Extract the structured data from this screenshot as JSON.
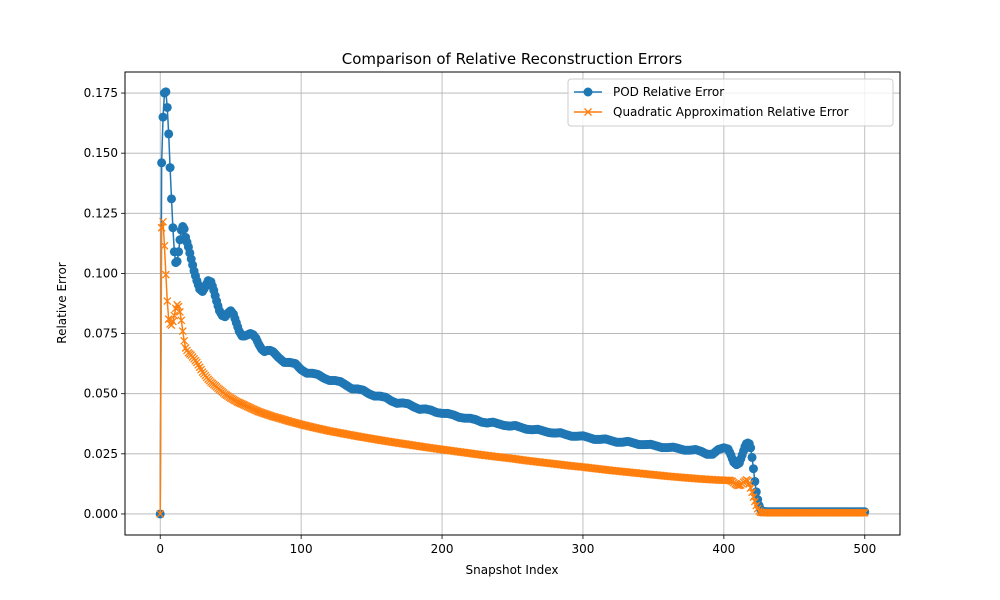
{
  "chart_data": {
    "type": "line",
    "title": "Comparison of Relative Reconstruction Errors",
    "xlabel": "Snapshot Index",
    "ylabel": "Relative Error",
    "xlim": [
      -25,
      525
    ],
    "ylim": [
      -0.00875,
      0.18375
    ],
    "xticks": [
      0,
      100,
      200,
      300,
      400,
      500
    ],
    "yticks": [
      0.0,
      0.025,
      0.05,
      0.075,
      0.1,
      0.125,
      0.15,
      0.175
    ],
    "xtick_labels": [
      "0",
      "100",
      "200",
      "300",
      "400",
      "500"
    ],
    "ytick_labels": [
      "0.000",
      "0.025",
      "0.050",
      "0.075",
      "0.100",
      "0.125",
      "0.150",
      "0.175"
    ],
    "grid": true,
    "legend_position": "top-right",
    "series": [
      {
        "name": "POD Relative Error",
        "color": "#1f77b4",
        "marker": "circle",
        "points": [
          [
            0,
            0.0
          ],
          [
            1,
            0.146
          ],
          [
            2,
            0.165
          ],
          [
            3,
            0.175
          ],
          [
            4,
            0.1755
          ],
          [
            5,
            0.169
          ],
          [
            6,
            0.158
          ],
          [
            7,
            0.144
          ],
          [
            8,
            0.131
          ],
          [
            9,
            0.119
          ],
          [
            10,
            0.109
          ],
          [
            11,
            0.1045
          ],
          [
            12,
            0.105
          ],
          [
            13,
            0.109
          ],
          [
            14,
            0.114
          ],
          [
            15,
            0.118
          ],
          [
            16,
            0.1195
          ],
          [
            17,
            0.1185
          ],
          [
            18,
            0.115
          ],
          [
            20,
            0.111
          ],
          [
            22,
            0.106
          ],
          [
            24,
            0.101
          ],
          [
            26,
            0.097
          ],
          [
            28,
            0.0935
          ],
          [
            30,
            0.0925
          ],
          [
            32,
            0.0945
          ],
          [
            34,
            0.097
          ],
          [
            36,
            0.0965
          ],
          [
            38,
            0.093
          ],
          [
            40,
            0.0885
          ],
          [
            42,
            0.0845
          ],
          [
            44,
            0.0825
          ],
          [
            46,
            0.082
          ],
          [
            48,
            0.0835
          ],
          [
            50,
            0.0845
          ],
          [
            52,
            0.083
          ],
          [
            54,
            0.0795
          ],
          [
            56,
            0.076
          ],
          [
            58,
            0.074
          ],
          [
            60,
            0.074
          ],
          [
            62,
            0.0745
          ],
          [
            64,
            0.075
          ],
          [
            66,
            0.0745
          ],
          [
            68,
            0.073
          ],
          [
            70,
            0.0705
          ],
          [
            72,
            0.0685
          ],
          [
            74,
            0.0675
          ],
          [
            76,
            0.068
          ],
          [
            78,
            0.068
          ],
          [
            80,
            0.0675
          ],
          [
            84,
            0.065
          ],
          [
            88,
            0.063
          ],
          [
            92,
            0.063
          ],
          [
            96,
            0.0625
          ],
          [
            100,
            0.06
          ],
          [
            104,
            0.0585
          ],
          [
            108,
            0.0585
          ],
          [
            112,
            0.058
          ],
          [
            116,
            0.0565
          ],
          [
            120,
            0.0555
          ],
          [
            124,
            0.0555
          ],
          [
            128,
            0.055
          ],
          [
            132,
            0.0535
          ],
          [
            136,
            0.052
          ],
          [
            140,
            0.052
          ],
          [
            144,
            0.0515
          ],
          [
            148,
            0.05
          ],
          [
            152,
            0.049
          ],
          [
            156,
            0.049
          ],
          [
            160,
            0.0485
          ],
          [
            164,
            0.047
          ],
          [
            168,
            0.046
          ],
          [
            172,
            0.0462
          ],
          [
            176,
            0.0458
          ],
          [
            180,
            0.0445
          ],
          [
            184,
            0.0435
          ],
          [
            188,
            0.0437
          ],
          [
            192,
            0.0432
          ],
          [
            196,
            0.0422
          ],
          [
            200,
            0.0418
          ],
          [
            204,
            0.0418
          ],
          [
            208,
            0.0412
          ],
          [
            212,
            0.0402
          ],
          [
            216,
            0.0398
          ],
          [
            220,
            0.0398
          ],
          [
            224,
            0.0392
          ],
          [
            228,
            0.0382
          ],
          [
            232,
            0.0378
          ],
          [
            236,
            0.0382
          ],
          [
            240,
            0.0375
          ],
          [
            244,
            0.0368
          ],
          [
            248,
            0.0365
          ],
          [
            252,
            0.0368
          ],
          [
            256,
            0.036
          ],
          [
            260,
            0.0352
          ],
          [
            264,
            0.035
          ],
          [
            268,
            0.0352
          ],
          [
            272,
            0.0345
          ],
          [
            276,
            0.0338
          ],
          [
            280,
            0.0336
          ],
          [
            284,
            0.0338
          ],
          [
            288,
            0.033
          ],
          [
            292,
            0.0323
          ],
          [
            296,
            0.0323
          ],
          [
            300,
            0.0325
          ],
          [
            304,
            0.0318
          ],
          [
            308,
            0.031
          ],
          [
            312,
            0.031
          ],
          [
            316,
            0.0312
          ],
          [
            320,
            0.0305
          ],
          [
            324,
            0.0298
          ],
          [
            328,
            0.0298
          ],
          [
            332,
            0.0302
          ],
          [
            336,
            0.0295
          ],
          [
            340,
            0.0288
          ],
          [
            344,
            0.0288
          ],
          [
            348,
            0.029
          ],
          [
            352,
            0.0283
          ],
          [
            356,
            0.0276
          ],
          [
            360,
            0.0276
          ],
          [
            364,
            0.0278
          ],
          [
            368,
            0.0272
          ],
          [
            372,
            0.0265
          ],
          [
            376,
            0.0265
          ],
          [
            380,
            0.0268
          ],
          [
            384,
            0.026
          ],
          [
            388,
            0.0248
          ],
          [
            392,
            0.0248
          ],
          [
            396,
            0.0268
          ],
          [
            400,
            0.0275
          ],
          [
            403,
            0.027
          ],
          [
            405,
            0.0245
          ],
          [
            407,
            0.0215
          ],
          [
            409,
            0.0205
          ],
          [
            411,
            0.0212
          ],
          [
            413,
            0.0245
          ],
          [
            415,
            0.028
          ],
          [
            416,
            0.0292
          ],
          [
            417,
            0.0295
          ],
          [
            418,
            0.0292
          ],
          [
            419,
            0.0275
          ],
          [
            420,
            0.0235
          ],
          [
            421,
            0.0188
          ],
          [
            422,
            0.0135
          ],
          [
            423,
            0.0092
          ],
          [
            424,
            0.006
          ],
          [
            425,
            0.0035
          ],
          [
            426,
            0.002
          ],
          [
            427,
            0.0012
          ],
          [
            428,
            0.001
          ],
          [
            432,
            0.0009
          ],
          [
            440,
            0.0009
          ],
          [
            450,
            0.0009
          ],
          [
            460,
            0.0009
          ],
          [
            470,
            0.0009
          ],
          [
            480,
            0.0009
          ],
          [
            490,
            0.0009
          ],
          [
            500,
            0.0009
          ]
        ]
      },
      {
        "name": "Quadratic Approximation Relative Error",
        "color": "#ff7f0e",
        "marker": "x",
        "points": [
          [
            0,
            0.0
          ],
          [
            1,
            0.119
          ],
          [
            2,
            0.1215
          ],
          [
            3,
            0.1115
          ],
          [
            4,
            0.0995
          ],
          [
            5,
            0.0885
          ],
          [
            6,
            0.081
          ],
          [
            7,
            0.079
          ],
          [
            8,
            0.0785
          ],
          [
            9,
            0.08
          ],
          [
            10,
            0.0825
          ],
          [
            11,
            0.0855
          ],
          [
            12,
            0.087
          ],
          [
            13,
            0.0862
          ],
          [
            14,
            0.084
          ],
          [
            15,
            0.0805
          ],
          [
            16,
            0.076
          ],
          [
            17,
            0.072
          ],
          [
            18,
            0.069
          ],
          [
            20,
            0.067
          ],
          [
            22,
            0.066
          ],
          [
            24,
            0.0645
          ],
          [
            26,
            0.063
          ],
          [
            28,
            0.061
          ],
          [
            30,
            0.059
          ],
          [
            32,
            0.0575
          ],
          [
            34,
            0.056
          ],
          [
            36,
            0.0548
          ],
          [
            38,
            0.0538
          ],
          [
            40,
            0.0528
          ],
          [
            42,
            0.0518
          ],
          [
            44,
            0.0508
          ],
          [
            46,
            0.0498
          ],
          [
            48,
            0.049
          ],
          [
            50,
            0.0482
          ],
          [
            55,
            0.0465
          ],
          [
            60,
            0.0452
          ],
          [
            65,
            0.0438
          ],
          [
            70,
            0.0425
          ],
          [
            75,
            0.0415
          ],
          [
            80,
            0.0405
          ],
          [
            85,
            0.0397
          ],
          [
            90,
            0.0388
          ],
          [
            95,
            0.038
          ],
          [
            100,
            0.0372
          ],
          [
            110,
            0.0358
          ],
          [
            120,
            0.0345
          ],
          [
            130,
            0.0334
          ],
          [
            140,
            0.0323
          ],
          [
            150,
            0.0313
          ],
          [
            160,
            0.0303
          ],
          [
            170,
            0.0294
          ],
          [
            180,
            0.0285
          ],
          [
            190,
            0.0276
          ],
          [
            200,
            0.0268
          ],
          [
            210,
            0.026
          ],
          [
            220,
            0.0252
          ],
          [
            230,
            0.0244
          ],
          [
            240,
            0.0237
          ],
          [
            250,
            0.023
          ],
          [
            260,
            0.0222
          ],
          [
            270,
            0.0215
          ],
          [
            280,
            0.0208
          ],
          [
            290,
            0.0201
          ],
          [
            300,
            0.0195
          ],
          [
            310,
            0.0188
          ],
          [
            320,
            0.0181
          ],
          [
            330,
            0.0175
          ],
          [
            340,
            0.0169
          ],
          [
            350,
            0.0163
          ],
          [
            360,
            0.0157
          ],
          [
            370,
            0.0152
          ],
          [
            380,
            0.0147
          ],
          [
            390,
            0.0143
          ],
          [
            400,
            0.014
          ],
          [
            404,
            0.014
          ],
          [
            406,
            0.0135
          ],
          [
            408,
            0.0125
          ],
          [
            410,
            0.0118
          ],
          [
            412,
            0.012
          ],
          [
            414,
            0.0132
          ],
          [
            416,
            0.0142
          ],
          [
            417,
            0.0138
          ],
          [
            418,
            0.0125
          ],
          [
            419,
            0.0108
          ],
          [
            420,
            0.009
          ],
          [
            421,
            0.007
          ],
          [
            422,
            0.0052
          ],
          [
            423,
            0.0035
          ],
          [
            424,
            0.0022
          ],
          [
            425,
            0.0012
          ],
          [
            426,
            0.0007
          ],
          [
            428,
            0.0005
          ],
          [
            432,
            0.0005
          ],
          [
            440,
            0.0005
          ],
          [
            450,
            0.0005
          ],
          [
            460,
            0.0005
          ],
          [
            470,
            0.0005
          ],
          [
            480,
            0.0005
          ],
          [
            490,
            0.0005
          ],
          [
            500,
            0.0005
          ]
        ]
      }
    ]
  }
}
